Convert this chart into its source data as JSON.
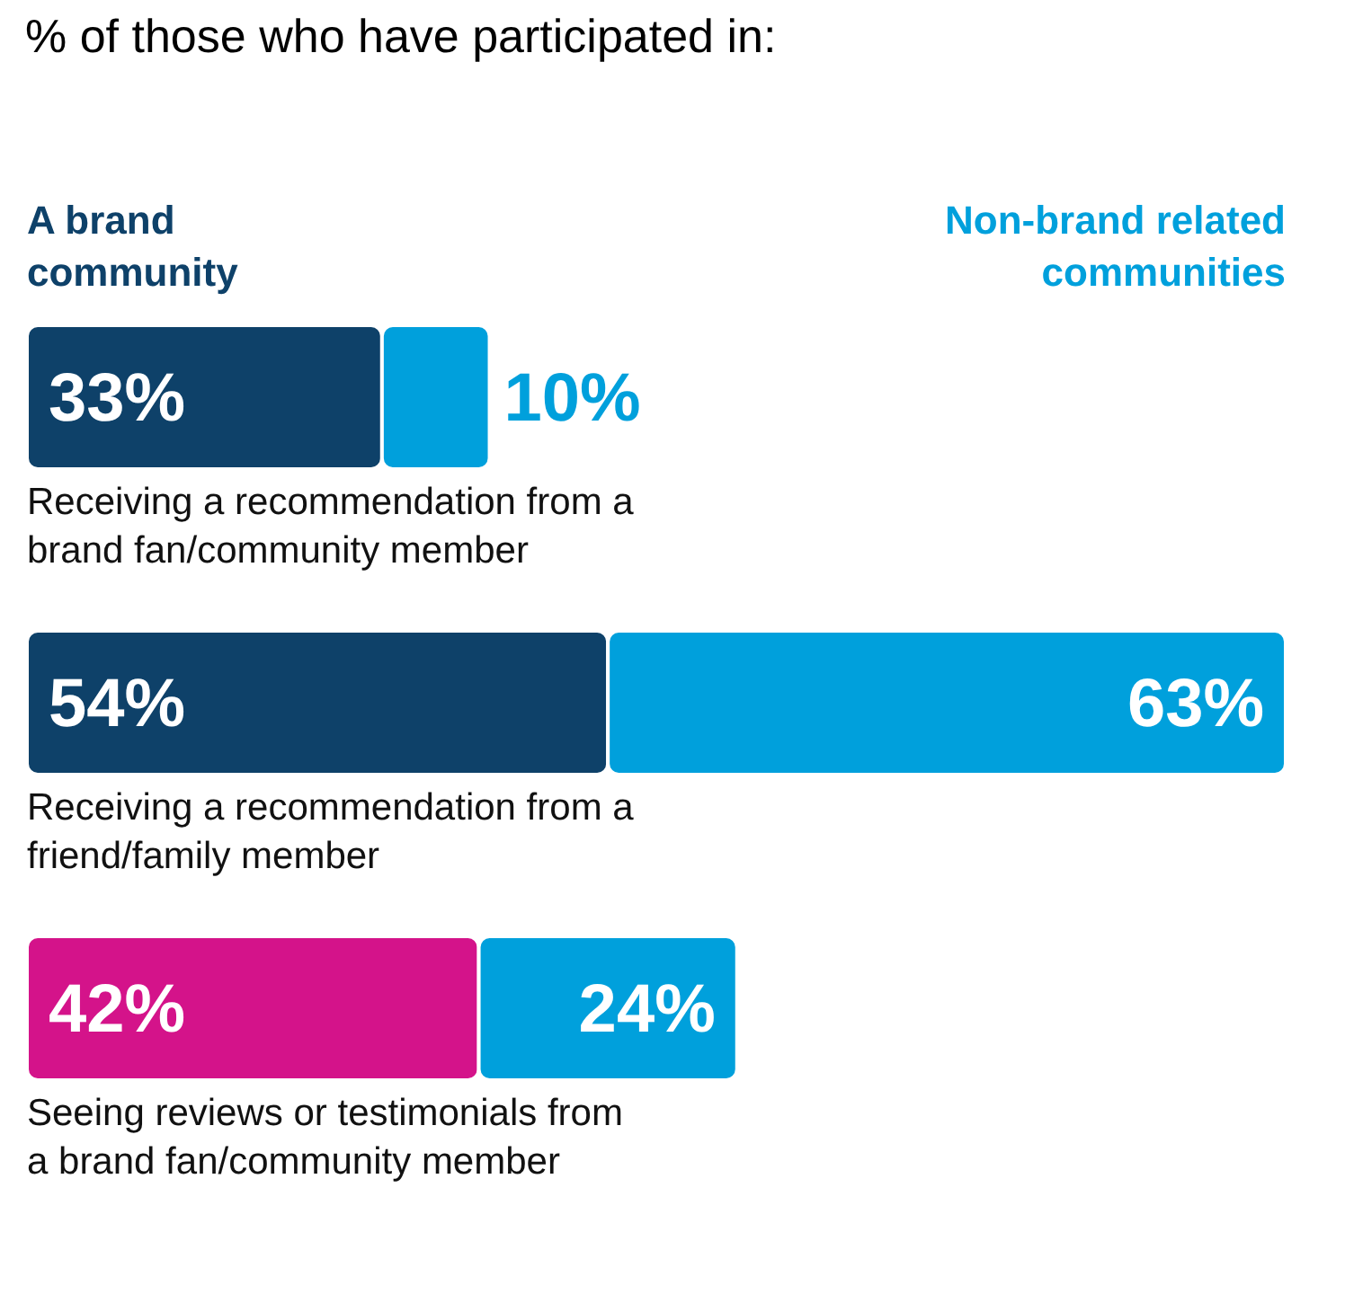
{
  "chart_data": {
    "type": "bar",
    "orientation": "horizontal",
    "stacked": true,
    "title": "% of those who have participated in:",
    "categories": [
      "Receiving a recommendation from a brand fan/community member",
      "Receiving a recommendation from a friend/family member",
      "Seeing reviews or testimonials from a brand fan/community member"
    ],
    "series": [
      {
        "name": "A brand community",
        "color": "#0e4169",
        "colors": [
          "#0e4169",
          "#0e4169",
          "#d4138a"
        ],
        "values": [
          33,
          54,
          42
        ],
        "value_labels": [
          "33%",
          "54%",
          "42%"
        ]
      },
      {
        "name": "Non-brand related communities",
        "color": "#00a0dc",
        "values": [
          10,
          63,
          24
        ],
        "value_labels": [
          "10%",
          "63%",
          "24%"
        ]
      }
    ],
    "legend": "top",
    "grid": false
  }
}
